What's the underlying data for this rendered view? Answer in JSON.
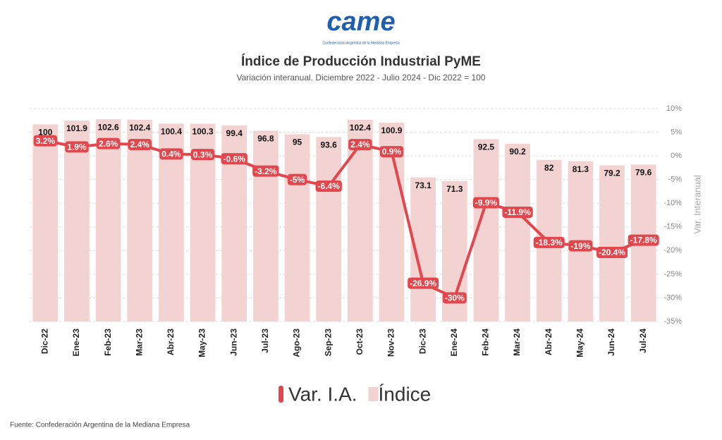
{
  "logo": "came",
  "logo_caption": "Confederación Argentina de la Mediana Empresa",
  "source": "Fuente: Confederación Argentina de la Mediana Empresa",
  "chart_data": {
    "type": "bar",
    "title": "Índice de Producción Industrial PyME",
    "subtitle": "Variación interanual. Diciembre 2022 - Julio 2024 - Dic 2022 = 100",
    "y2label": "Var. Interanual",
    "categories": [
      "Dic-22",
      "Ene-23",
      "Feb-23",
      "Mar-23",
      "Abr-23",
      "May-23",
      "Jun-23",
      "Jul-23",
      "Ago-23",
      "Sep-23",
      "Oct-23",
      "Nov-23",
      "Dic-23",
      "Ene-24",
      "Feb-24",
      "Mar-24",
      "Abr-24",
      "May-24",
      "Jun-24",
      "Jul-24"
    ],
    "series": [
      {
        "name": "Var. I.A.",
        "type": "line",
        "axis": "y2",
        "color": "#e2474d",
        "values": [
          3.2,
          1.9,
          2.6,
          2.4,
          0.4,
          0.3,
          -0.6,
          -3.2,
          -5,
          -6.4,
          2.4,
          0.9,
          -26.9,
          -30,
          -9.9,
          -11.9,
          -18.3,
          -19,
          -20.4,
          -17.8
        ],
        "value_labels": [
          "3.2%",
          "1.9%",
          "2.6%",
          "2.4%",
          "0.4%",
          "0.3%",
          "-0.6%",
          "-3.2%",
          "-5%",
          "-6.4%",
          "2.4%",
          "0.9%",
          "-26.9%",
          "-30%",
          "-9.9%",
          "-11.9%",
          "-18.3%",
          "-19%",
          "-20.4%",
          "-17.8%"
        ]
      },
      {
        "name": "Índice",
        "type": "bar",
        "color": "#f3d2d2",
        "values": [
          100,
          101.9,
          102.6,
          102.4,
          100.4,
          100.3,
          99.4,
          96.8,
          95,
          93.6,
          102.4,
          100.9,
          73.1,
          71.3,
          92.5,
          90.2,
          82,
          81.3,
          79.2,
          79.6
        ]
      }
    ],
    "ylim": [
      0,
      108
    ],
    "y2lim": [
      -35,
      10
    ],
    "y2ticks": [
      {
        "value": 10,
        "label": "10%"
      },
      {
        "value": 5,
        "label": "5%"
      },
      {
        "value": 0,
        "label": "0%"
      },
      {
        "value": -5,
        "label": "-5%"
      },
      {
        "value": -10,
        "label": "-10%"
      },
      {
        "value": -15,
        "label": "-15%"
      },
      {
        "value": -20,
        "label": "-20%"
      },
      {
        "value": -25,
        "label": "-25%"
      },
      {
        "value": -30,
        "label": "-30%"
      },
      {
        "value": -35,
        "label": "-35%"
      }
    ],
    "grid": true
  }
}
